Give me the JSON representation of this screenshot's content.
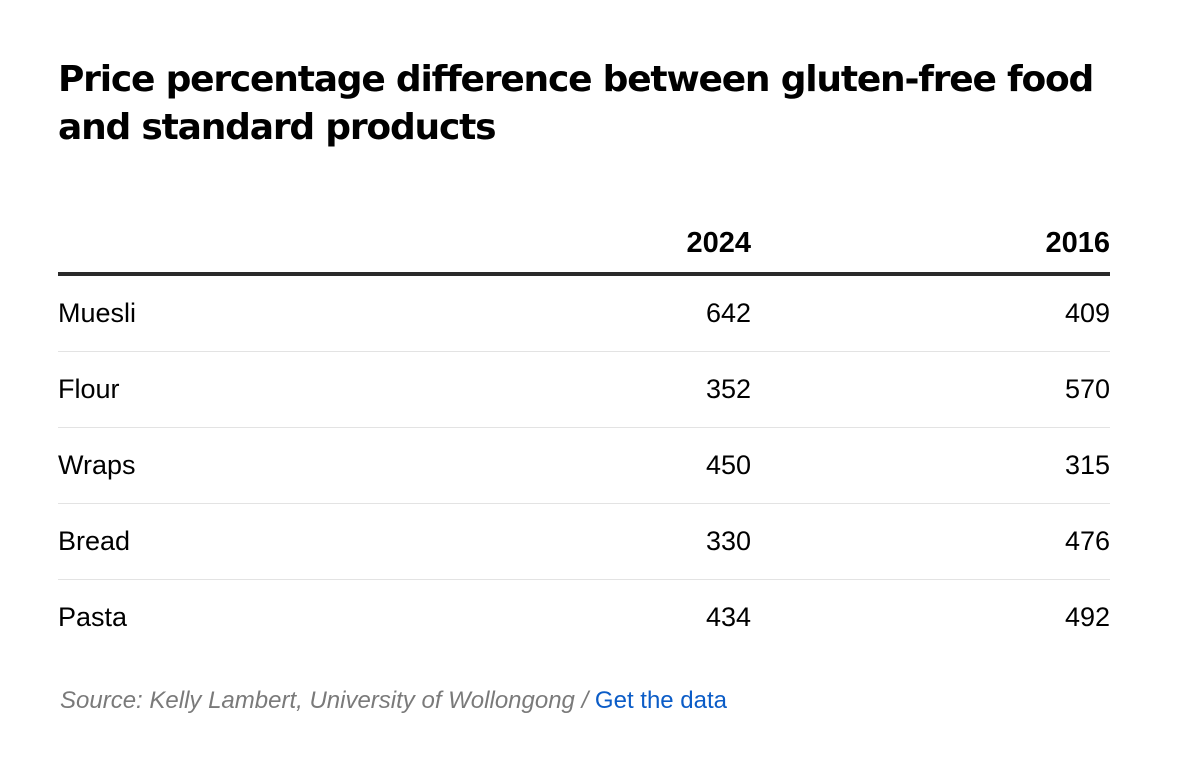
{
  "chart_data": {
    "type": "table",
    "title": "Price percentage difference between gluten-free food and standard products",
    "columns": [
      "",
      "2024",
      "2016"
    ],
    "rows": [
      {
        "label": "Muesli",
        "values": [
          642,
          409
        ]
      },
      {
        "label": "Flour",
        "values": [
          352,
          570
        ]
      },
      {
        "label": "Wraps",
        "values": [
          450,
          315
        ]
      },
      {
        "label": "Bread",
        "values": [
          330,
          476
        ]
      },
      {
        "label": "Pasta",
        "values": [
          434,
          492
        ]
      }
    ]
  },
  "footer": {
    "source": "Source: Kelly Lambert, University of Wollongong",
    "separator": "/",
    "link_label": "Get the data"
  }
}
